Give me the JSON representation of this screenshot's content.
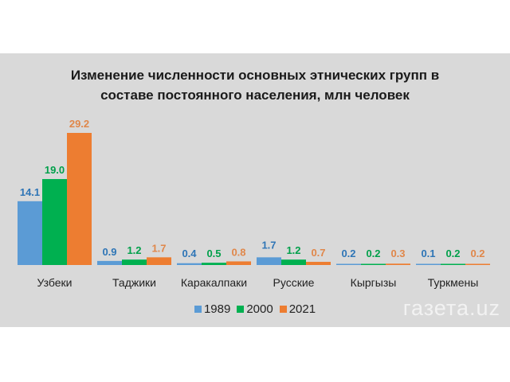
{
  "chart_data": {
    "type": "bar",
    "title_lines": [
      "Изменение численности основных этнических групп в",
      "составе постоянного населения, млн человек"
    ],
    "categories": [
      "Узбеки",
      "Таджики",
      "Каракалпаки",
      "Русские",
      "Кыргызы",
      "Туркмены"
    ],
    "series": [
      {
        "name": "1989",
        "color": "#5b9bd5",
        "label_color": "#2e75b6",
        "values": [
          14.1,
          0.9,
          0.4,
          1.7,
          0.2,
          0.1
        ]
      },
      {
        "name": "2000",
        "color": "#00b050",
        "label_color": "#00a04a",
        "values": [
          19.0,
          1.2,
          0.5,
          1.2,
          0.2,
          0.2
        ]
      },
      {
        "name": "2021",
        "color": "#ed7d31",
        "label_color": "#e0874a",
        "values": [
          29.2,
          1.7,
          0.8,
          0.7,
          0.3,
          0.2
        ]
      }
    ],
    "ylim": [
      0,
      29.2
    ],
    "grid": false,
    "legend_position": "bottom"
  },
  "watermark": "газета.uz"
}
